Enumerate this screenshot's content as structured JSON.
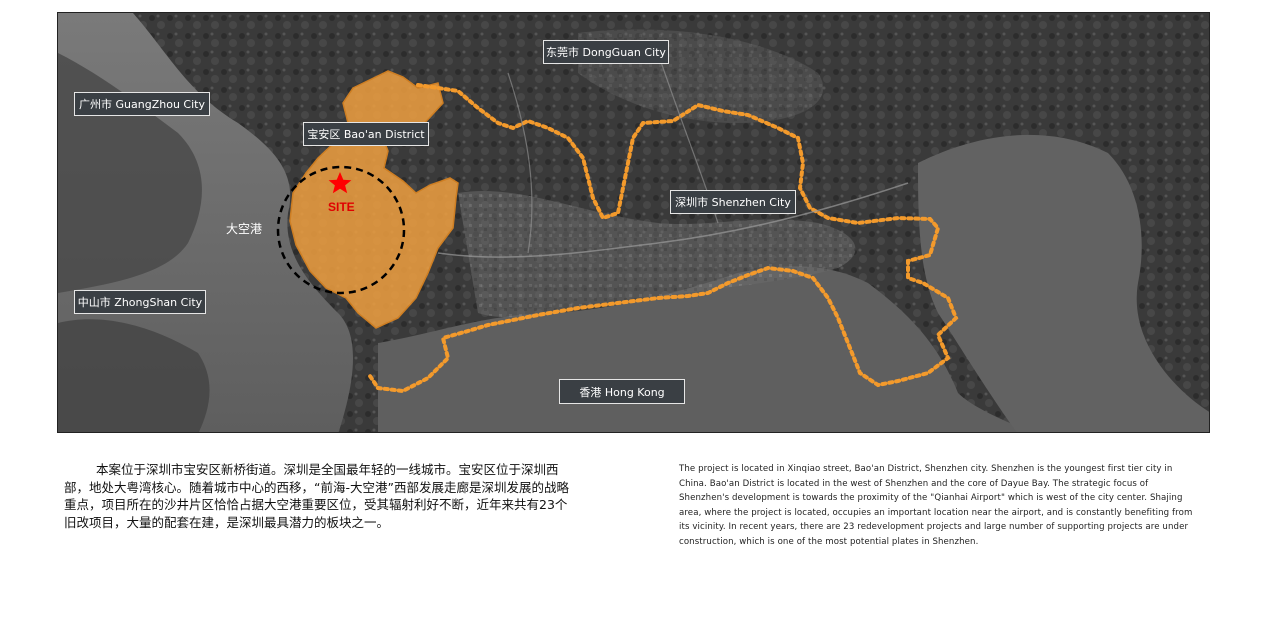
{
  "map": {
    "site_label": "SITE",
    "bay_label": "大空港",
    "labels": {
      "guangzhou": "广州市 GuangZhou City",
      "dongguan": "东莞市 DongGuan City",
      "baoan": "宝安区 Bao'an District",
      "shenzhen": "深圳市 Shenzhen City",
      "zhongshan": "中山市 ZhongShan City",
      "hongkong": "香港 Hong Kong"
    },
    "colors": {
      "district_fill": "#f0a040",
      "boundary_dots": "#f39a2c",
      "site_star": "#ff0000",
      "site_circle": "#000000",
      "label_bg": "#3a3f44"
    }
  },
  "description": {
    "cn": "本案位于深圳市宝安区新桥街道。深圳是全国最年轻的一线城市。宝安区位于深圳西部，地处大粤湾核心。随着城市中心的西移，“前海-大空港”西部发展走廊是深圳发展的战略重点，项目所在的沙井片区恰恰占据大空港重要区位，受其辐射利好不断，近年来共有23个旧改项目，大量的配套在建，是深圳最具潜力的板块之一。",
    "en": "The project is located in Xinqiao street, Bao'an District, Shenzhen city. Shenzhen is the youngest first tier city in China. Bao'an District is located in the west of Shenzhen and the core of Dayue Bay. The strategic focus of Shenzhen's development is towards the proximity of the \"Qianhai Airport\" which is west of the city center. Shajing area, where the project is located, occupies an important location near the airport, and is constantly benefiting from its vicinity. In recent years, there are 23 redevelopment projects and large number of supporting projects are under construction, which is one of the most potential plates in Shenzhen."
  }
}
